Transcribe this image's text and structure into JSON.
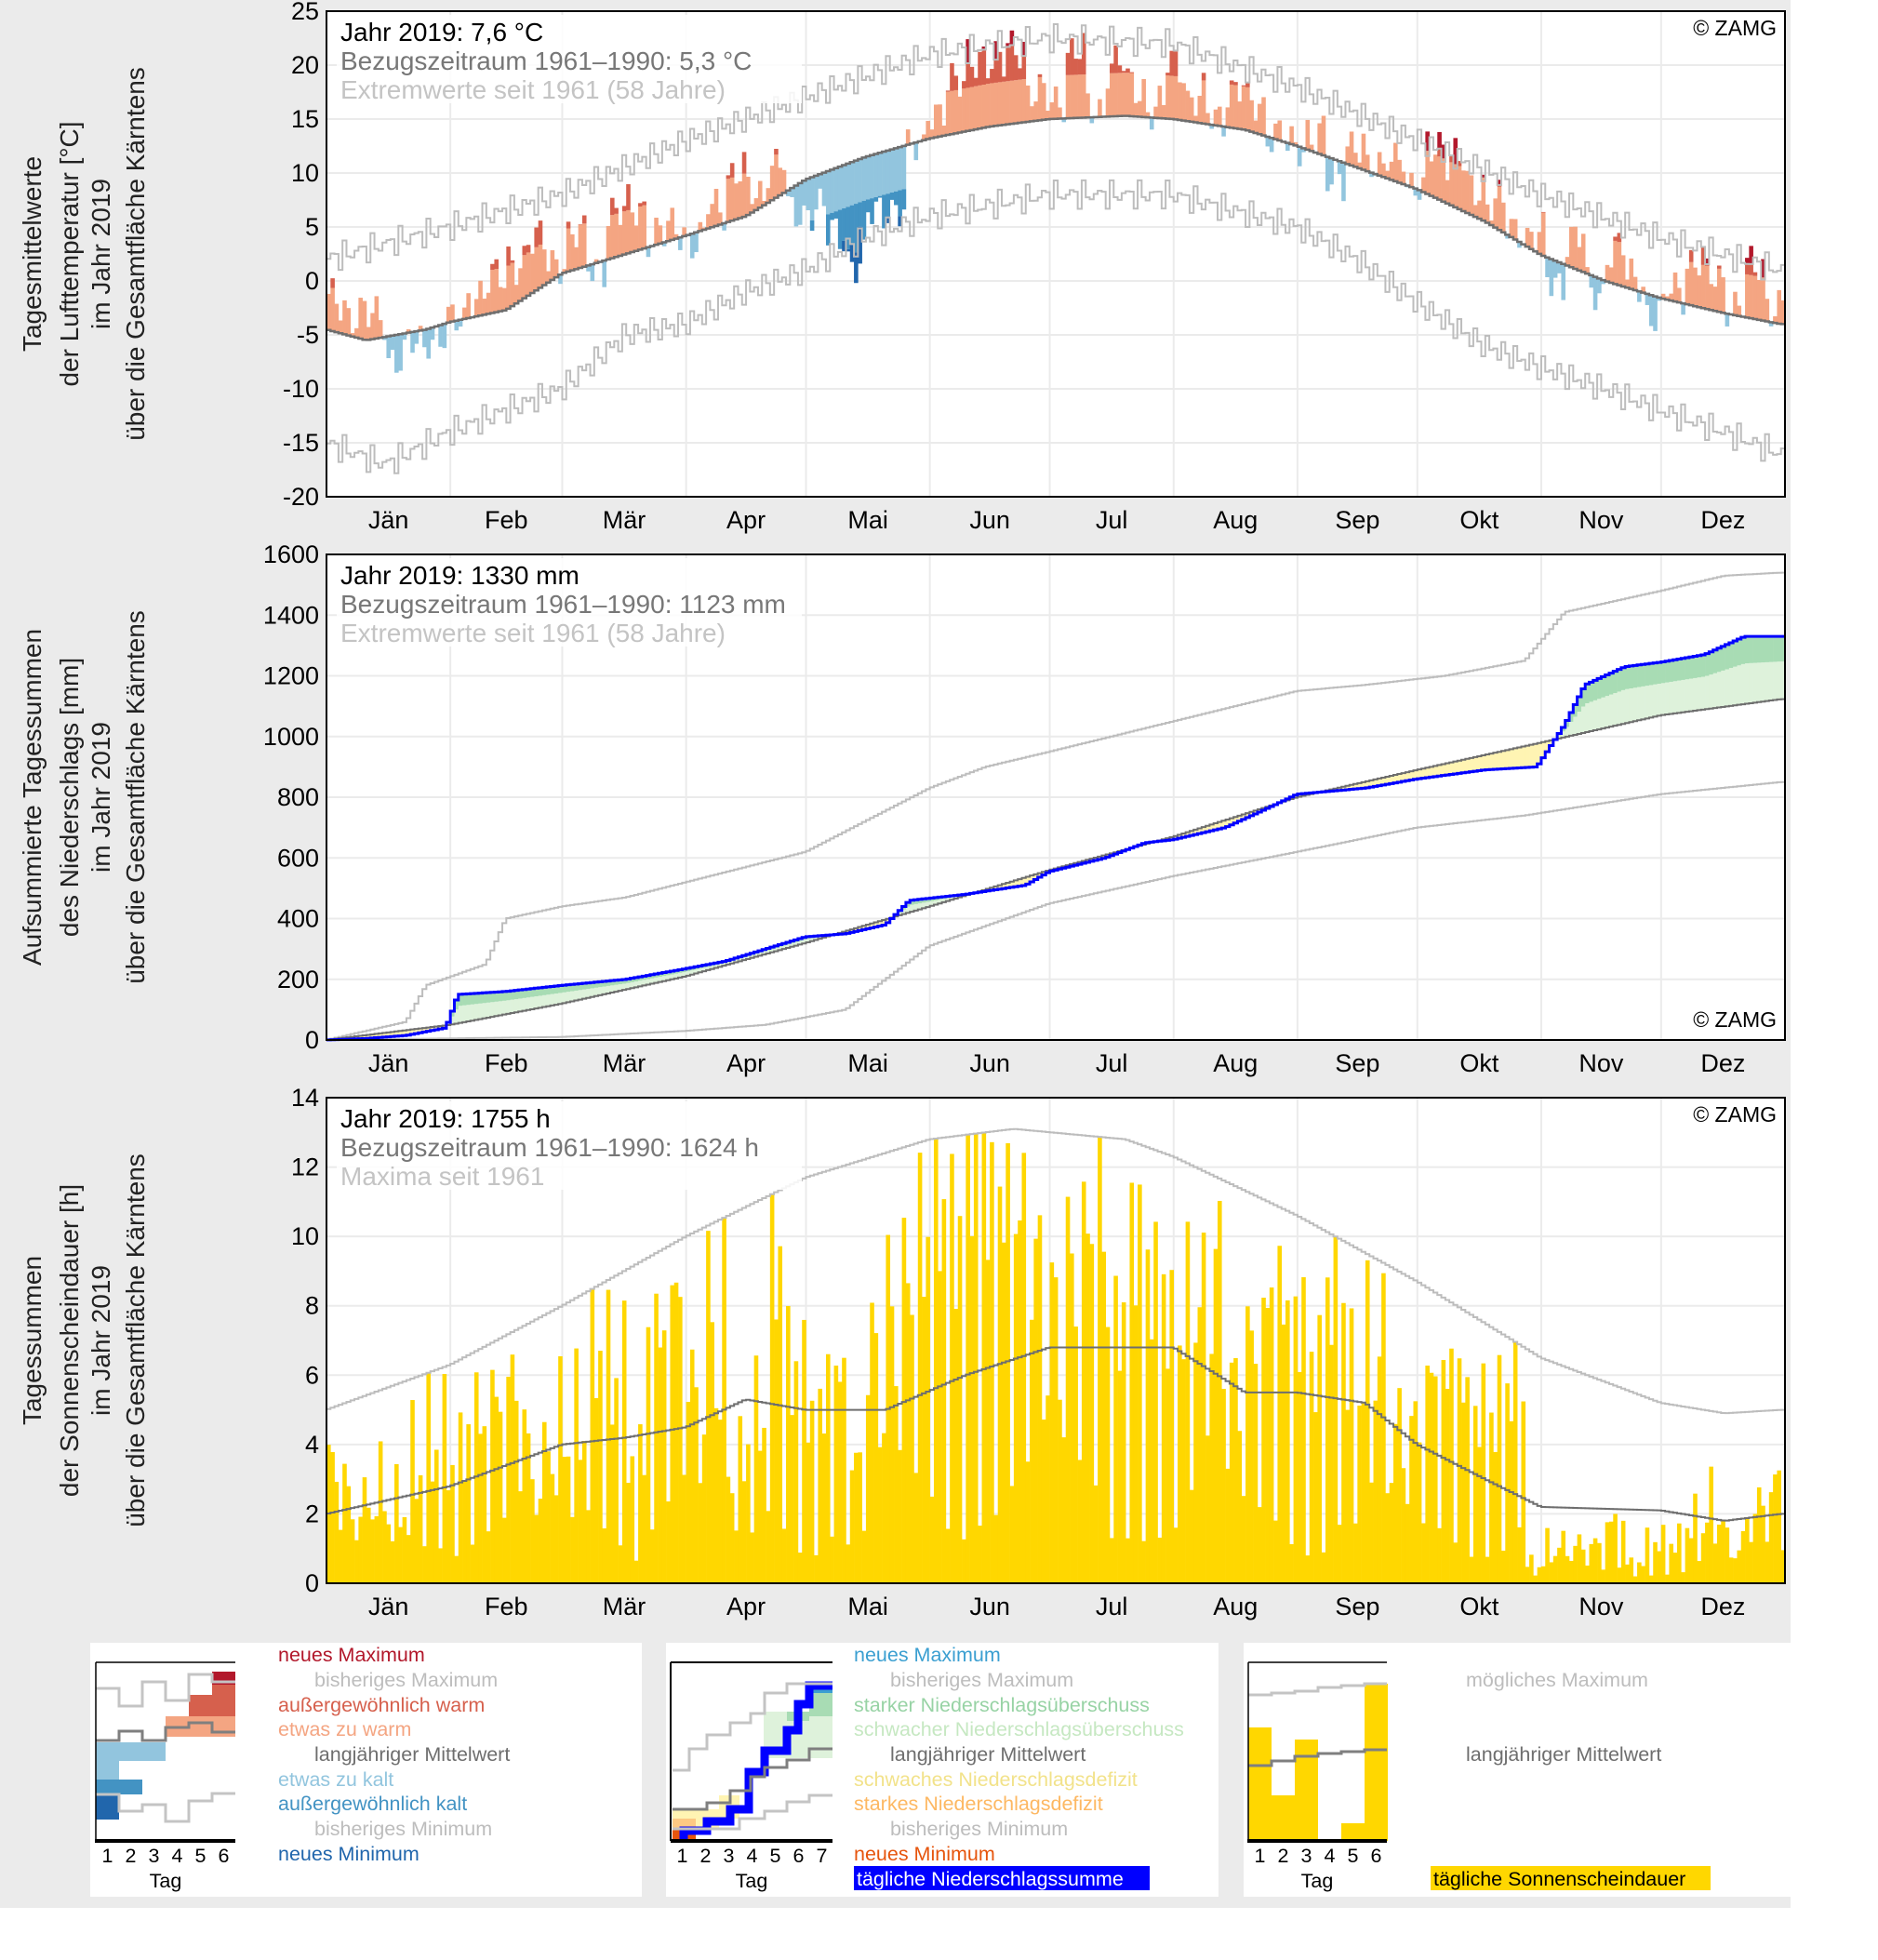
{
  "colors": {
    "new_max": "#b2182b",
    "very_warm": "#d6604d",
    "warm": "#f4a582",
    "cool": "#92c5de",
    "very_cold": "#4393c3",
    "new_min": "#2166ac",
    "normal_line": "#6e6e6e",
    "extreme_line": "#bdbdbd",
    "precip_line": "#0000ff",
    "strong_surplus": "#a8dcb4",
    "weak_surplus": "#def2db",
    "weak_deficit": "#fff4b3",
    "strong_deficit": "#fdc983",
    "precip_new_min": "#e6550d",
    "precip_new_max": "#3b9fd1",
    "sunshine": "#ffd700"
  },
  "months": [
    "Jän",
    "Feb",
    "Mär",
    "Apr",
    "Mai",
    "Jun",
    "Jul",
    "Aug",
    "Sep",
    "Okt",
    "Nov",
    "Dez"
  ],
  "chart_data": [
    {
      "type": "bar",
      "id": "temperature",
      "ylabel_lines": [
        "Tagesmittelwerte",
        "der Lufttemperatur [°C]",
        "im Jahr 2019",
        "über die Gesamtfläche Kärntens"
      ],
      "ylim": [
        -20,
        25
      ],
      "yticks": [
        "25",
        "20",
        "15",
        "10",
        "5",
        "0",
        "-5",
        "-10",
        "-15",
        "-20"
      ],
      "ytick_values": [
        25,
        20,
        15,
        10,
        5,
        0,
        -5,
        -10,
        -15,
        -20
      ],
      "annotations": {
        "year": "Jahr 2019: 7,6 °C",
        "reference": "Bezugszeitraum 1961–1990: 5,3 °C",
        "extremes": "Extremwerte seit 1961 (58 Jahre)",
        "copyright": "© ZAMG"
      },
      "series_2019_5day_means": [
        -2,
        -3,
        -3.5,
        -7,
        -6,
        -5,
        -4,
        -1,
        0,
        2,
        3.5,
        2,
        4,
        1.5,
        6,
        7,
        4,
        5,
        3.5,
        7,
        10,
        8,
        11,
        6,
        7,
        4,
        2,
        6,
        7,
        12,
        16,
        18,
        21,
        20,
        22,
        17,
        17,
        21,
        16,
        20,
        18,
        16,
        20,
        17,
        15,
        18,
        16,
        14,
        12,
        14,
        9,
        13,
        10,
        12,
        8,
        13,
        11,
        9,
        7,
        5,
        4,
        0,
        4,
        -1,
        3,
        0,
        -3,
        -1,
        2,
        0,
        -2,
        1,
        -2
      ],
      "normal_1961_1990": [
        [
          0,
          -4.5
        ],
        [
          10,
          -5.5
        ],
        [
          25,
          -4.5
        ],
        [
          31,
          -3.8
        ],
        [
          45,
          -2.7
        ],
        [
          59,
          0.7
        ],
        [
          75,
          2.5
        ],
        [
          90,
          4.2
        ],
        [
          105,
          6
        ],
        [
          120,
          9.4
        ],
        [
          135,
          11.5
        ],
        [
          151,
          13.2
        ],
        [
          166,
          14.3
        ],
        [
          181,
          15
        ],
        [
          200,
          15.3
        ],
        [
          212,
          15
        ],
        [
          230,
          14
        ],
        [
          243,
          12.5
        ],
        [
          258,
          10.5
        ],
        [
          273,
          8.5
        ],
        [
          290,
          5.5
        ],
        [
          304,
          2.4
        ],
        [
          320,
          0
        ],
        [
          334,
          -1.6
        ],
        [
          350,
          -3
        ],
        [
          364,
          -4
        ]
      ],
      "max_since_1961": [
        [
          0,
          2
        ],
        [
          31,
          5
        ],
        [
          59,
          8
        ],
        [
          90,
          13
        ],
        [
          120,
          17
        ],
        [
          151,
          21
        ],
        [
          181,
          22.5
        ],
        [
          212,
          22
        ],
        [
          243,
          18
        ],
        [
          273,
          13
        ],
        [
          304,
          8
        ],
        [
          334,
          4
        ],
        [
          364,
          1
        ]
      ],
      "min_since_1961": [
        [
          0,
          -15
        ],
        [
          15,
          -17
        ],
        [
          31,
          -14
        ],
        [
          59,
          -10
        ],
        [
          75,
          -5
        ],
        [
          90,
          -4
        ],
        [
          105,
          -1
        ],
        [
          120,
          1
        ],
        [
          135,
          4
        ],
        [
          151,
          6
        ],
        [
          181,
          8
        ],
        [
          212,
          8
        ],
        [
          243,
          5
        ],
        [
          258,
          2
        ],
        [
          273,
          -2
        ],
        [
          290,
          -6
        ],
        [
          304,
          -8
        ],
        [
          320,
          -10
        ],
        [
          334,
          -12
        ],
        [
          350,
          -14
        ],
        [
          364,
          -16
        ]
      ]
    },
    {
      "type": "line",
      "id": "precipitation",
      "ylabel_lines": [
        "Aufsummierte Tagessummen",
        "des Niederschlags [mm]",
        "im Jahr 2019",
        "über die Gesamtfläche Kärntens"
      ],
      "ylim": [
        0,
        1600
      ],
      "yticks": [
        "1600",
        "1400",
        "1200",
        "1000",
        "800",
        "600",
        "400",
        "200",
        "0"
      ],
      "ytick_values": [
        1600,
        1400,
        1200,
        1000,
        800,
        600,
        400,
        200,
        0
      ],
      "annotations": {
        "year": "Jahr 2019: 1330 mm",
        "reference": "Bezugszeitraum 1961–1990: 1123 mm",
        "extremes": "Extremwerte seit 1961 (58 Jahre)",
        "copyright": "© ZAMG"
      },
      "cumulative_2019": [
        [
          0,
          0
        ],
        [
          10,
          5
        ],
        [
          20,
          15
        ],
        [
          30,
          40
        ],
        [
          33,
          150
        ],
        [
          45,
          160
        ],
        [
          59,
          180
        ],
        [
          75,
          200
        ],
        [
          90,
          235
        ],
        [
          100,
          260
        ],
        [
          120,
          340
        ],
        [
          130,
          350
        ],
        [
          140,
          380
        ],
        [
          146,
          460
        ],
        [
          160,
          480
        ],
        [
          175,
          510
        ],
        [
          181,
          555
        ],
        [
          195,
          600
        ],
        [
          205,
          650
        ],
        [
          212,
          660
        ],
        [
          225,
          700
        ],
        [
          235,
          760
        ],
        [
          243,
          810
        ],
        [
          260,
          830
        ],
        [
          273,
          860
        ],
        [
          290,
          890
        ],
        [
          303,
          900
        ],
        [
          310,
          1040
        ],
        [
          315,
          1170
        ],
        [
          325,
          1230
        ],
        [
          334,
          1245
        ],
        [
          345,
          1270
        ],
        [
          355,
          1330
        ],
        [
          364,
          1330
        ]
      ],
      "normal_1961_1990": [
        [
          0,
          0
        ],
        [
          31,
          50
        ],
        [
          59,
          120
        ],
        [
          90,
          210
        ],
        [
          120,
          320
        ],
        [
          151,
          440
        ],
        [
          181,
          560
        ],
        [
          212,
          670
        ],
        [
          243,
          800
        ],
        [
          273,
          890
        ],
        [
          304,
          980
        ],
        [
          334,
          1070
        ],
        [
          364,
          1123
        ]
      ],
      "max_since_1961": [
        [
          0,
          0
        ],
        [
          20,
          60
        ],
        [
          25,
          180
        ],
        [
          40,
          250
        ],
        [
          45,
          400
        ],
        [
          59,
          440
        ],
        [
          75,
          470
        ],
        [
          90,
          520
        ],
        [
          120,
          620
        ],
        [
          151,
          830
        ],
        [
          165,
          900
        ],
        [
          181,
          950
        ],
        [
          212,
          1050
        ],
        [
          243,
          1150
        ],
        [
          260,
          1170
        ],
        [
          280,
          1200
        ],
        [
          300,
          1250
        ],
        [
          310,
          1410
        ],
        [
          334,
          1480
        ],
        [
          350,
          1530
        ],
        [
          364,
          1540
        ]
      ],
      "min_since_1961": [
        [
          0,
          0
        ],
        [
          59,
          10
        ],
        [
          90,
          30
        ],
        [
          110,
          50
        ],
        [
          130,
          100
        ],
        [
          140,
          200
        ],
        [
          151,
          310
        ],
        [
          181,
          450
        ],
        [
          212,
          540
        ],
        [
          243,
          620
        ],
        [
          273,
          700
        ],
        [
          300,
          740
        ],
        [
          334,
          810
        ],
        [
          364,
          850
        ]
      ]
    },
    {
      "type": "bar",
      "id": "sunshine",
      "ylabel_lines": [
        "Tagessummen",
        "der Sonnenscheindauer [h]",
        "im Jahr 2019",
        "über die Gesamtfläche Kärntens"
      ],
      "ylim": [
        0,
        14
      ],
      "yticks": [
        "14",
        "12",
        "10",
        "8",
        "6",
        "4",
        "2",
        "0"
      ],
      "ytick_values": [
        14,
        12,
        10,
        8,
        6,
        4,
        2,
        0
      ],
      "annotations": {
        "year": "Jahr 2019: 1755 h",
        "reference": "Bezugszeitraum 1961–1990: 1624 h",
        "extremes": "Maxima seit 1961",
        "copyright": "© ZAMG"
      },
      "series_2019_5day_means": [
        3,
        2,
        2.5,
        2,
        3,
        3.5,
        3,
        4,
        4.5,
        5,
        3,
        4,
        4,
        6,
        5,
        3,
        6,
        7,
        5,
        7,
        3,
        4,
        8,
        5,
        4,
        5,
        3,
        6,
        7,
        8,
        9,
        8,
        10,
        9,
        9,
        8,
        7,
        8,
        9,
        6,
        8,
        7,
        6,
        7,
        8,
        5,
        6,
        7,
        6,
        5,
        7,
        5,
        6,
        4,
        4,
        5,
        5,
        4,
        4,
        5,
        0.5,
        1,
        1,
        1,
        1.5,
        0.5,
        1,
        1,
        1.5,
        2,
        1,
        2,
        2.5
      ],
      "max_possible": [
        [
          0,
          5
        ],
        [
          31,
          6.3
        ],
        [
          59,
          8
        ],
        [
          90,
          10
        ],
        [
          120,
          11.7
        ],
        [
          151,
          12.8
        ],
        [
          172,
          13.1
        ],
        [
          200,
          12.8
        ],
        [
          212,
          12.3
        ],
        [
          243,
          10.6
        ],
        [
          273,
          8.7
        ],
        [
          304,
          6.5
        ],
        [
          334,
          5.2
        ],
        [
          350,
          4.9
        ],
        [
          364,
          5
        ]
      ],
      "normal_1961_1990": [
        [
          0,
          2
        ],
        [
          31,
          2.8
        ],
        [
          59,
          4
        ],
        [
          75,
          4.2
        ],
        [
          90,
          4.5
        ],
        [
          105,
          5.3
        ],
        [
          120,
          5
        ],
        [
          140,
          5
        ],
        [
          160,
          6
        ],
        [
          181,
          6.8
        ],
        [
          212,
          6.8
        ],
        [
          230,
          5.5
        ],
        [
          243,
          5.5
        ],
        [
          260,
          5.2
        ],
        [
          273,
          4
        ],
        [
          290,
          3
        ],
        [
          304,
          2.2
        ],
        [
          334,
          2.1
        ],
        [
          350,
          1.8
        ],
        [
          364,
          2
        ]
      ]
    }
  ],
  "legend": {
    "temperature": {
      "items": [
        "neues Maximum",
        "bisheriges Maximum",
        "außergewöhnlich warm",
        "etwas zu warm",
        "langjähriger Mittelwert",
        "etwas zu kalt",
        "außergewöhnlich kalt",
        "bisheriges Minimum",
        "neues Minimum"
      ],
      "ticks": [
        "1",
        "2",
        "3",
        "4",
        "5",
        "6"
      ],
      "xlabel": "Tag"
    },
    "precipitation": {
      "items": [
        "neues Maximum",
        "bisheriges Maximum",
        "starker Niederschlagsüberschuss",
        "schwacher Niederschlagsüberschuss",
        "langjähriger Mittelwert",
        "schwaches Niederschlagsdefizit",
        "starkes Niederschlagsdefizit",
        "bisheriges Minimum",
        "neues Minimum",
        "tägliche Niederschlagssumme"
      ],
      "ticks": [
        "1",
        "2",
        "3",
        "4",
        "5",
        "6",
        "7"
      ],
      "xlabel": "Tag"
    },
    "sunshine": {
      "items": [
        "mögliches Maximum",
        "langjähriger Mittelwert",
        "tägliche Sonnenscheindauer"
      ],
      "ticks": [
        "1",
        "2",
        "3",
        "4",
        "5",
        "6"
      ],
      "xlabel": "Tag"
    }
  }
}
